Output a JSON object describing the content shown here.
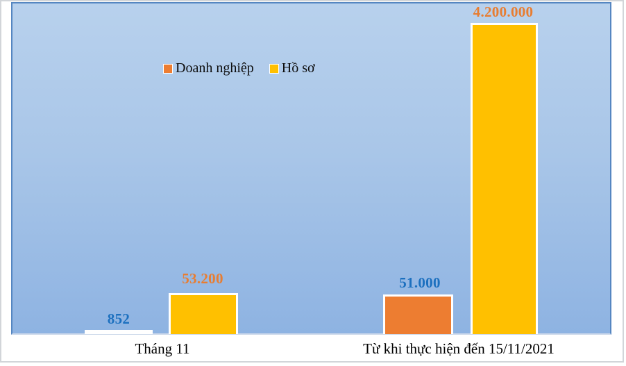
{
  "chart_data": {
    "type": "bar",
    "title": "",
    "categories": [
      "Tháng 11",
      "Từ khi thực hiện đến 15/11/2021"
    ],
    "series": [
      {
        "name": "Doanh nghiệp",
        "color": "#ED7D31",
        "values": [
          852,
          51000
        ],
        "data_labels": [
          "852",
          "51.000"
        ],
        "data_label_color": "#1C70BF"
      },
      {
        "name": "Hồ sơ",
        "color": "#FFC000",
        "values": [
          53200,
          4200000
        ],
        "data_labels": [
          "53.200",
          "4.200.000"
        ],
        "data_label_color": "#E87D31"
      }
    ],
    "legend": {
      "position": "inside-top, left of center",
      "entries": [
        "Doanh nghiệp",
        "Hồ sơ"
      ]
    },
    "axes": {
      "x_type": "category",
      "y_axis_visible": false,
      "gridlines": false
    },
    "plot_background": {
      "type": "gradient",
      "from": "#B8D1ED",
      "to": "#8EB3E2"
    },
    "bar_outline_color": "#FFFFFF",
    "frame_border_color": "#D2D5D9",
    "plot_border_color": "#5586C1"
  }
}
